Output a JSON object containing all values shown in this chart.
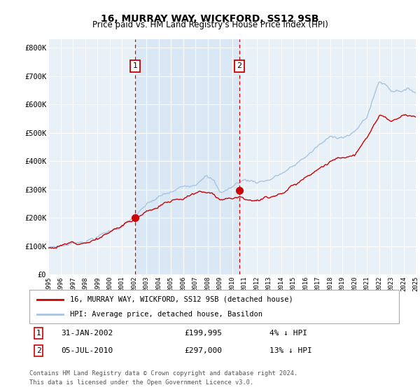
{
  "title": "16, MURRAY WAY, WICKFORD, SS12 9SB",
  "subtitle": "Price paid vs. HM Land Registry's House Price Index (HPI)",
  "x_start_year": 1995,
  "x_end_year": 2025,
  "ylim": [
    0,
    830000
  ],
  "yticks": [
    0,
    100000,
    200000,
    300000,
    400000,
    500000,
    600000,
    700000,
    800000
  ],
  "ytick_labels": [
    "£0",
    "£100K",
    "£200K",
    "£300K",
    "£400K",
    "£500K",
    "£600K",
    "£700K",
    "£800K"
  ],
  "sale1_date_num": 2002.08,
  "sale1_price": 199995,
  "sale1_label": "1",
  "sale2_date_num": 2010.58,
  "sale2_price": 297000,
  "sale2_label": "2",
  "hpi_color": "#a8c4e0",
  "price_color": "#cc0000",
  "marker_color": "#cc0000",
  "dashed_color": "#cc0000",
  "shading_color": "#dae8f5",
  "background_color": "#e8f0f8",
  "grid_color": "#ffffff",
  "legend_label_price": "16, MURRAY WAY, WICKFORD, SS12 9SB (detached house)",
  "legend_label_hpi": "HPI: Average price, detached house, Basildon",
  "footer": "Contains HM Land Registry data © Crown copyright and database right 2024.\nThis data is licensed under the Open Government Licence v3.0.",
  "title_fontsize": 10,
  "subtitle_fontsize": 8.5
}
